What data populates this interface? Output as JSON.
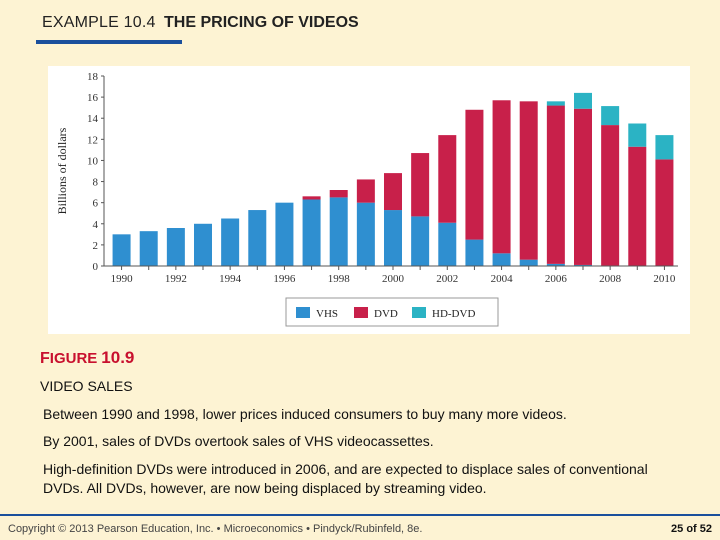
{
  "header": {
    "example_label": "EXAMPLE 10.4",
    "example_title": "THE PRICING OF VIDEOS"
  },
  "figure": {
    "label_prefix_big": "F",
    "label_prefix_small": "IGURE",
    "number": "10.9",
    "title": "VIDEO SALES",
    "paragraphs": [
      "Between 1990 and 1998, lower prices induced consumers to buy many more videos.",
      "By 2001, sales of DVDs overtook sales of VHS videocassettes.",
      "High-definition DVDs were introduced in 2006, and are expected to displace sales of conventional DVDs. All DVDs, however, are now being displaced by streaming video."
    ]
  },
  "footer": {
    "copyright": "Copyright © 2013 Pearson Education, Inc. • Microeconomics • Pindyck/Rubinfeld, 8e.",
    "page": "25 of 52"
  },
  "colors": {
    "VHS": "#2f8fd0",
    "DVD": "#c8204a",
    "HD-DVD": "#2bb3c4",
    "accent_red": "#c8102e",
    "accent_blue": "#1a4f9c"
  },
  "chart_data": {
    "type": "bar",
    "stacked": true,
    "title": "",
    "xlabel": "",
    "ylabel": "Billions of dollars",
    "ylim": [
      0,
      18
    ],
    "yticks": [
      0,
      2,
      4,
      6,
      8,
      10,
      12,
      14,
      16,
      18
    ],
    "categories": [
      "1990",
      "1991",
      "1992",
      "1993",
      "1994",
      "1995",
      "1996",
      "1997",
      "1998",
      "1999",
      "2000",
      "2001",
      "2002",
      "2003",
      "2004",
      "2005",
      "2006",
      "2007",
      "2008",
      "2009",
      "2010"
    ],
    "x_tick_labels": [
      "1990",
      "1992",
      "1994",
      "1996",
      "1998",
      "2000",
      "2002",
      "2004",
      "2006",
      "2008",
      "2010"
    ],
    "series": [
      {
        "name": "VHS",
        "values": [
          3.0,
          3.3,
          3.6,
          4.0,
          4.5,
          5.3,
          6.0,
          6.3,
          6.5,
          6.0,
          5.3,
          4.7,
          4.1,
          2.5,
          1.2,
          0.6,
          0.2,
          0.1,
          0.05,
          0,
          0
        ]
      },
      {
        "name": "DVD",
        "values": [
          0,
          0,
          0,
          0,
          0,
          0,
          0,
          0.3,
          0.7,
          2.2,
          3.5,
          6.0,
          8.3,
          12.3,
          14.5,
          15.0,
          15.0,
          14.8,
          13.3,
          11.3,
          10.1
        ]
      },
      {
        "name": "HD-DVD",
        "values": [
          0,
          0,
          0,
          0,
          0,
          0,
          0,
          0,
          0,
          0,
          0,
          0,
          0,
          0,
          0,
          0,
          0.4,
          1.5,
          1.8,
          2.2,
          2.3
        ]
      }
    ],
    "legend_position": "bottom-center",
    "grid": false
  }
}
